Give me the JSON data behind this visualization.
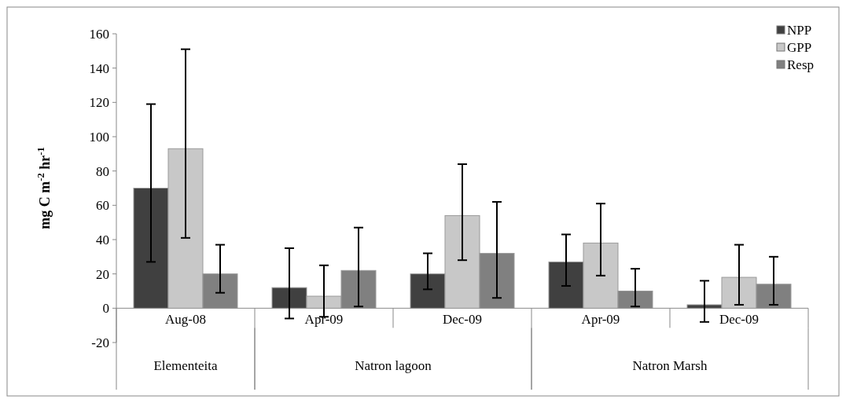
{
  "chart_data": {
    "type": "bar",
    "ylabel": "mg  C  m$^{-2}$  hr$^{-1}$",
    "categories": [
      "Aug-08",
      "Apr-09",
      "Dec-09",
      "Apr-09",
      "Dec-09"
    ],
    "series": [
      {
        "name": "NPP",
        "color": "#404040",
        "values": [
          70,
          12,
          20,
          27,
          2
        ],
        "errors": [
          [
            27,
            119
          ],
          [
            -6,
            35
          ],
          [
            11,
            32
          ],
          [
            13,
            43
          ],
          [
            -8,
            16
          ]
        ]
      },
      {
        "name": "GPP",
        "color": "#c8c8c8",
        "values": [
          93,
          7,
          54,
          38,
          18
        ],
        "errors": [
          [
            41,
            151
          ],
          [
            -5,
            25
          ],
          [
            28,
            84
          ],
          [
            19,
            61
          ],
          [
            2,
            37
          ]
        ]
      },
      {
        "name": "Resp",
        "color": "#808080",
        "values": [
          20,
          22,
          32,
          10,
          14
        ],
        "errors": [
          [
            9,
            37
          ],
          [
            1,
            47
          ],
          [
            6,
            62
          ],
          [
            1,
            23
          ],
          [
            2,
            30
          ]
        ]
      }
    ],
    "ylim": [
      -20,
      160
    ],
    "yticks": [
      -20,
      0,
      20,
      40,
      60,
      80,
      100,
      120,
      140,
      160
    ],
    "legend": "top right",
    "annotations": [
      "Elementeita",
      "Natron lagoon",
      "Natron Marsh"
    ]
  }
}
